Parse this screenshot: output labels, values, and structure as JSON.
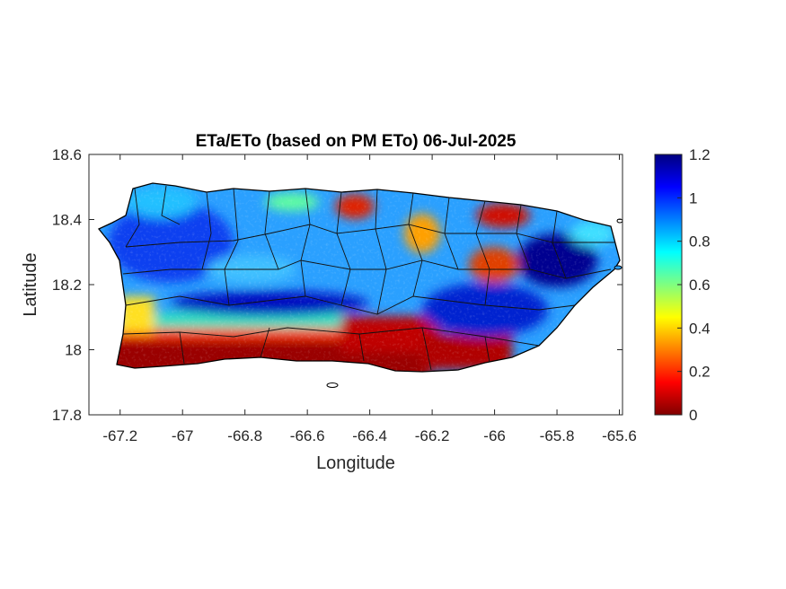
{
  "title": "ETa/ETo (based on PM ETo) 06-Jul-2025",
  "xlabel": "Longitude",
  "ylabel": "Latitude",
  "x_ticks": [
    "-67.2",
    "-67",
    "-66.8",
    "-66.6",
    "-66.4",
    "-66.2",
    "-66",
    "-65.8",
    "-65.6"
  ],
  "y_ticks": [
    "18.6",
    "18.4",
    "18.2",
    "18",
    "17.8"
  ],
  "colorbar_ticks": [
    "1.2",
    "1",
    "0.8",
    "0.6",
    "0.4",
    "0.2",
    "0"
  ],
  "chart_data": {
    "type": "heatmap",
    "title": "ETa/ETo (based on PM ETo) 06-Jul-2025",
    "xlabel": "Longitude",
    "ylabel": "Latitude",
    "xlim": [
      -67.3,
      -65.59
    ],
    "ylim": [
      17.8,
      18.6
    ],
    "x_ticks": [
      -67.2,
      -67,
      -66.8,
      -66.6,
      -66.4,
      -66.2,
      -66,
      -65.8,
      -65.6
    ],
    "y_ticks": [
      18.6,
      18.4,
      18.2,
      18,
      17.8
    ],
    "colorbar": {
      "colormap": "jet",
      "range": [
        0,
        1.2
      ],
      "ticks": [
        0,
        0.2,
        0.4,
        0.6,
        0.8,
        1,
        1.2
      ]
    }
  }
}
